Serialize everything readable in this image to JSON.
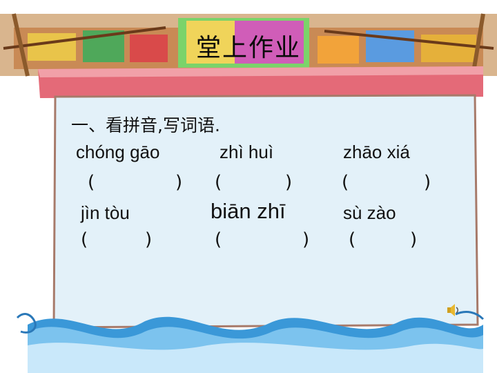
{
  "title": "堂上作业",
  "heading": "一、看拼音,写词语.",
  "words": [
    {
      "pinyin": "chóng gāo"
    },
    {
      "pinyin": "zhì huì"
    },
    {
      "pinyin": "zhāo xiá"
    },
    {
      "pinyin": "jìn tòu"
    },
    {
      "pinyin": "biān zhī"
    },
    {
      "pinyin": "sù zào"
    }
  ],
  "answer_open": "(",
  "answer_close": ")",
  "colors": {
    "card": "#e3f1f9",
    "card_border": "#a77a6a",
    "banner": "#e46a78",
    "water": "#3a98d8"
  },
  "icons": [
    "boat-illustration",
    "water-wave-border",
    "speaker-icon"
  ]
}
